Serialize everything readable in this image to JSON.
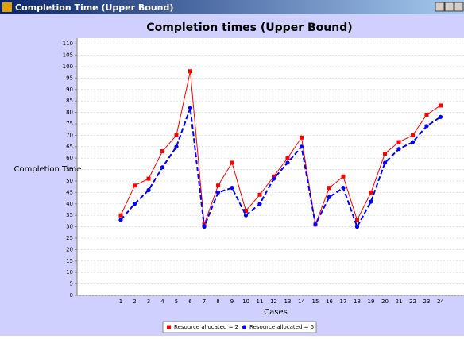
{
  "window": {
    "title": "Completion Time (Upper Bound)"
  },
  "chart_data": {
    "type": "line",
    "title": "Completion times (Upper Bound)",
    "x_label": "Cases",
    "y_label": "Completion Time",
    "categories": [
      "1",
      "2",
      "3",
      "4",
      "5",
      "6",
      "7",
      "8",
      "9",
      "10",
      "11",
      "12",
      "13",
      "14",
      "15",
      "16",
      "17",
      "18",
      "19",
      "20",
      "21",
      "22",
      "23",
      "24"
    ],
    "series": [
      {
        "name": "Resource allocated = 2",
        "color": "#ff0000",
        "marker": "square",
        "dashed": false,
        "values": [
          35,
          48,
          51,
          63,
          70,
          98,
          31,
          48,
          58,
          37,
          44,
          52,
          60,
          69,
          31,
          47,
          52,
          33,
          45,
          62,
          67,
          70,
          79,
          83
        ]
      },
      {
        "name": "Resource allocated = 5",
        "color": "#0000ff",
        "marker": "circle",
        "dashed": true,
        "values": [
          33,
          40,
          46,
          56,
          65,
          82,
          30,
          45,
          47,
          35,
          40,
          51,
          58,
          65,
          31,
          43,
          47,
          30,
          41,
          58,
          64,
          67,
          74,
          78
        ]
      }
    ],
    "ylim": [
      0,
      112.5
    ],
    "yticks": [
      0,
      5,
      10,
      15,
      20,
      25,
      30,
      35,
      40,
      45,
      50,
      55,
      60,
      65,
      70,
      75,
      80,
      85,
      90,
      95,
      100,
      105,
      110
    ],
    "grid": true,
    "legend": "bottom"
  }
}
